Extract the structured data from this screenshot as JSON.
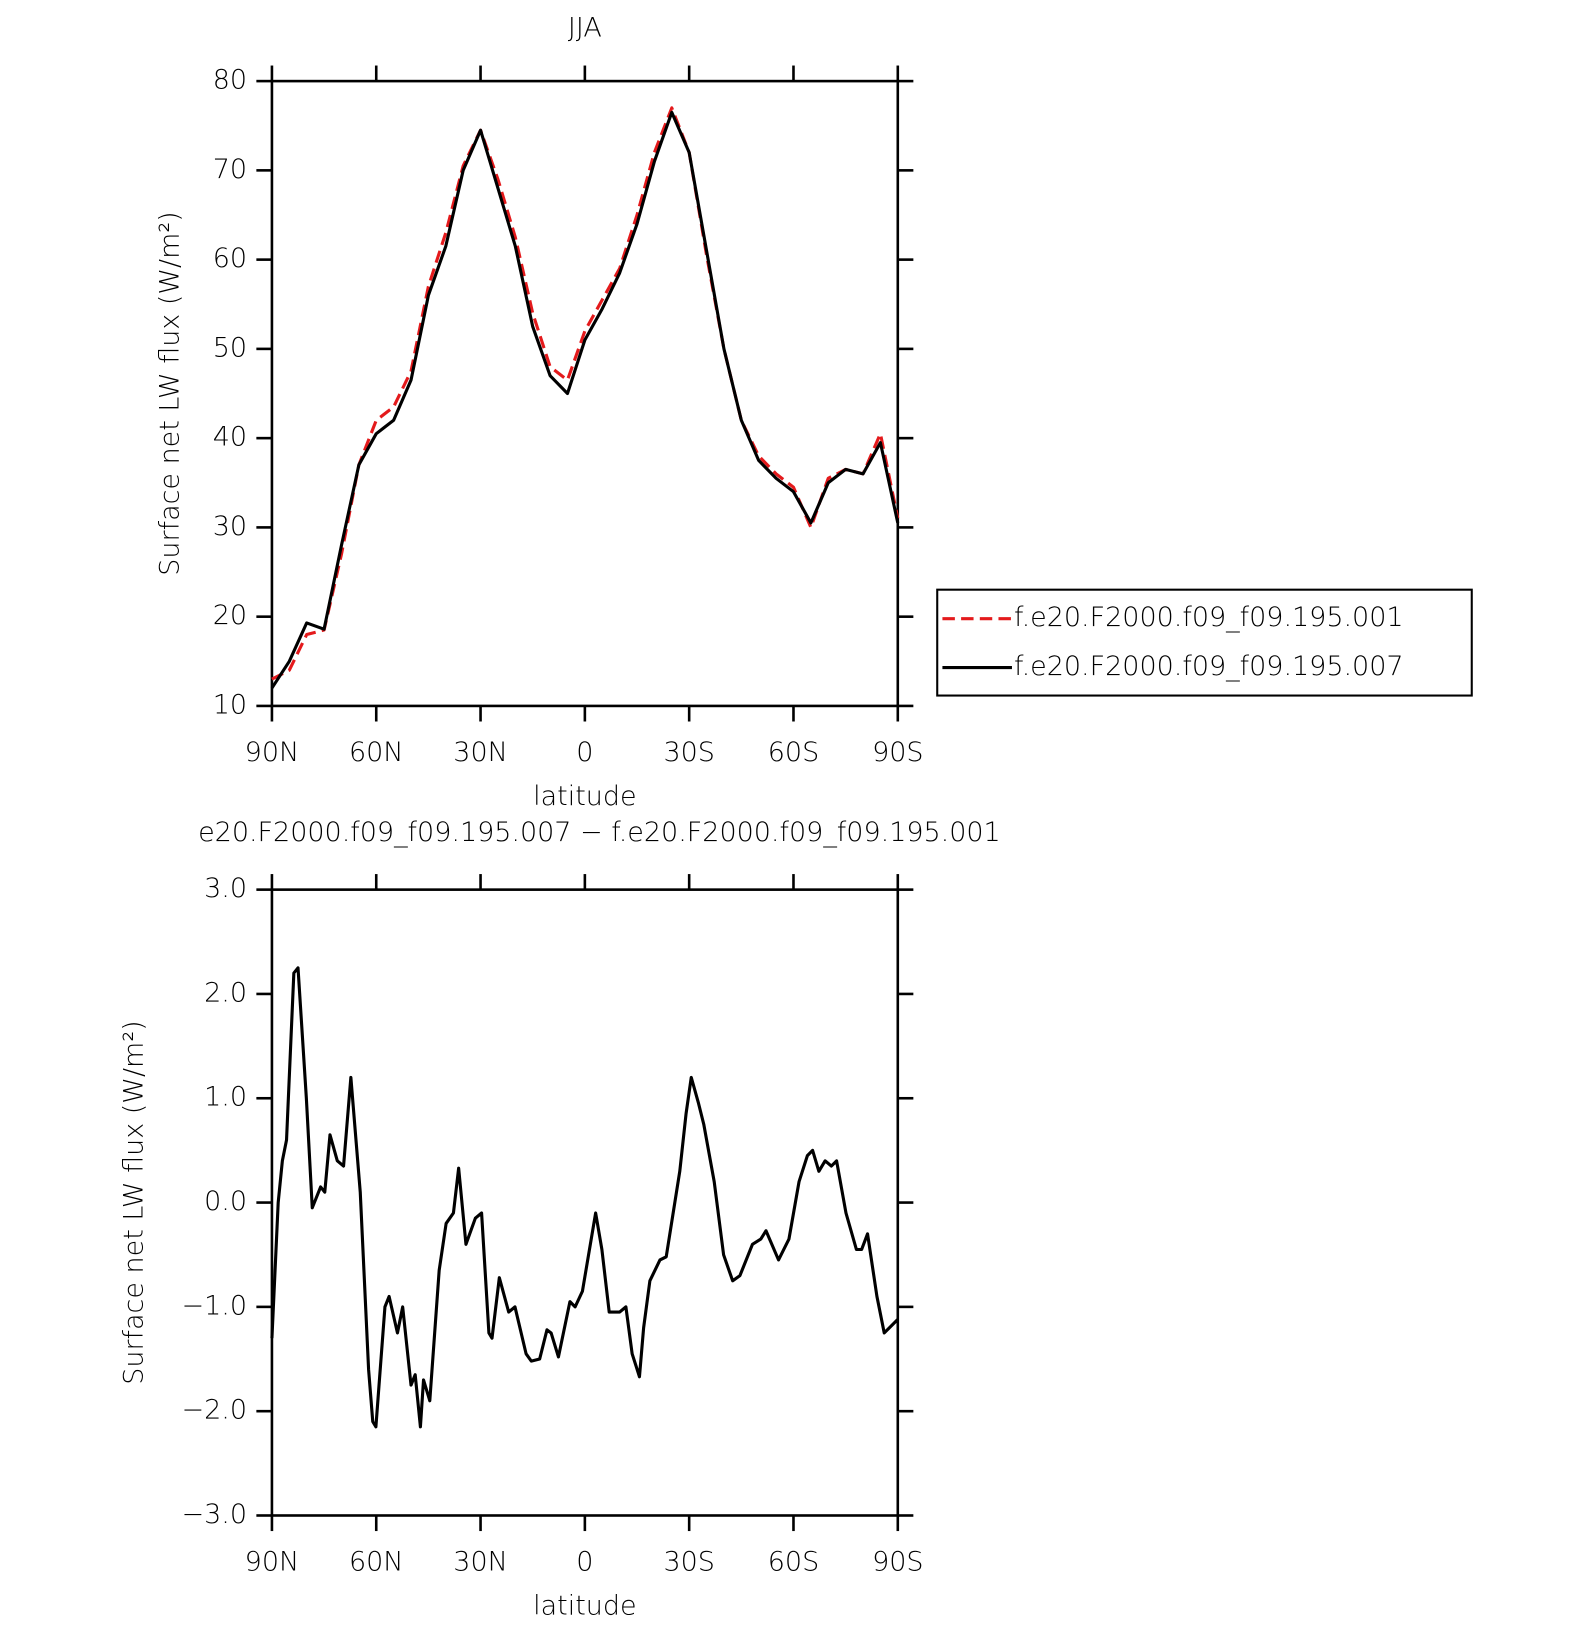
{
  "chart_data": [
    {
      "type": "line",
      "title": "JJA",
      "x_label": "latitude",
      "y_label": "Surface net LW flux (W/m²)",
      "x": [
        90,
        85,
        80,
        75,
        70,
        65,
        60,
        55,
        50,
        45,
        40,
        35,
        30,
        25,
        20,
        15,
        10,
        5,
        0,
        -5,
        -10,
        -15,
        -20,
        -25,
        -30,
        -35,
        -40,
        -45,
        -50,
        -55,
        -60,
        -65,
        -70,
        -75,
        -80,
        -85,
        -90
      ],
      "series": [
        {
          "name": "f.e20.F2000.f09_f09.195.001",
          "color": "#e41a1c",
          "dashed": true,
          "values": [
            13,
            14,
            18,
            18.5,
            27,
            37,
            42,
            43.5,
            47.5,
            57,
            63,
            70.5,
            74.5,
            69,
            62.5,
            54,
            48,
            46.5,
            52,
            55.5,
            59,
            65,
            72,
            77,
            72,
            60.5,
            50,
            42,
            38,
            36,
            34.5,
            30,
            35.5,
            36.5,
            36,
            40.5,
            31
          ]
        },
        {
          "name": "f.e20.F2000.f09_f09.195.007",
          "color": "#000000",
          "dashed": false,
          "values": [
            12,
            15,
            19.3,
            18.6,
            28,
            37,
            40.5,
            42,
            46.5,
            56,
            61.5,
            70,
            74.5,
            68,
            61.5,
            52.5,
            47,
            45,
            51,
            54.5,
            58.5,
            64,
            71,
            76.5,
            72,
            61,
            50,
            42,
            37.5,
            35.5,
            34,
            30.5,
            35,
            36.5,
            36,
            39.5,
            30.5
          ]
        }
      ],
      "xlim": [
        90,
        -90
      ],
      "xticks": [
        {
          "value": 90,
          "label": "90N"
        },
        {
          "value": 60,
          "label": "60N"
        },
        {
          "value": 30,
          "label": "30N"
        },
        0,
        {
          "value": -30,
          "label": "30S"
        },
        {
          "value": -60,
          "label": "60S"
        },
        {
          "value": -90,
          "label": "90S"
        }
      ],
      "ylim": [
        10,
        80
      ],
      "yticks": [
        10,
        20,
        30,
        40,
        50,
        60,
        70,
        80
      ],
      "legend": "right",
      "grid": false
    },
    {
      "type": "line",
      "title": "e20.F2000.f09_f09.195.007 − f.e20.F2000.f09_f09.195.001",
      "x_label": "latitude",
      "y_label": "Surface net LW flux (W/m²)",
      "x": [
        90,
        88.2,
        87,
        85.8,
        83.7,
        82.5,
        80.1,
        78.4,
        76,
        74.8,
        73.3,
        71.2,
        69.4,
        67.3,
        64.6,
        62.2,
        61,
        60.1,
        57.5,
        56.3,
        53.9,
        52.4,
        50,
        48.8,
        47.3,
        46.4,
        44.6,
        41.9,
        39.9,
        37.8,
        36.3,
        34.2,
        31.5,
        29.7,
        27.6,
        26.7,
        24.6,
        21.9,
        20.1,
        16.9,
        15.4,
        13,
        10.9,
        9.7,
        7.6,
        4.3,
        2.8,
        0.7,
        -3.1,
        -4.9,
        -7,
        -10,
        -11.8,
        -13.6,
        -15.7,
        -16.9,
        -18.7,
        -21.6,
        -23.4,
        -27.3,
        -29.1,
        -30.6,
        -32.7,
        -34.2,
        -37.2,
        -39.9,
        -42.5,
        -44.6,
        -48.2,
        -50.6,
        -52.1,
        -55.7,
        -58.7,
        -61.6,
        -64,
        -65.5,
        -67.3,
        -69.1,
        -70.9,
        -72.4,
        -75.1,
        -78.1,
        -79.6,
        -81.3,
        -84,
        -86.1,
        -90
      ],
      "series": [
        {
          "color": "#000000",
          "dashed": false,
          "values": [
            -1.3,
            0,
            0.4,
            0.6,
            2.2,
            2.25,
            1.0,
            -0.05,
            0.15,
            0.1,
            0.65,
            0.4,
            0.35,
            1.2,
            0.1,
            -1.6,
            -2.1,
            -2.15,
            -1.0,
            -0.9,
            -1.25,
            -1.0,
            -1.75,
            -1.65,
            -2.15,
            -1.7,
            -1.9,
            -0.65,
            -0.2,
            -0.1,
            0.33,
            -0.4,
            -0.15,
            -0.1,
            -1.25,
            -1.3,
            -0.72,
            -1.05,
            -1.0,
            -1.45,
            -1.52,
            -1.5,
            -1.22,
            -1.25,
            -1.48,
            -0.95,
            -1.0,
            -0.85,
            -0.1,
            -0.45,
            -1.05,
            -1.05,
            -1.0,
            -1.45,
            -1.67,
            -1.2,
            -0.75,
            -0.55,
            -0.52,
            0.3,
            0.85,
            1.2,
            0.95,
            0.75,
            0.2,
            -0.5,
            -0.75,
            -0.7,
            -0.4,
            -0.35,
            -0.27,
            -0.55,
            -0.35,
            0.2,
            0.45,
            0.5,
            0.3,
            0.4,
            0.35,
            0.4,
            -0.1,
            -0.45,
            -0.45,
            -0.3,
            -0.9,
            -1.25,
            -1.12
          ]
        }
      ],
      "xlim": [
        90,
        -90
      ],
      "xticks": [
        {
          "value": 90,
          "label": "90N"
        },
        {
          "value": 60,
          "label": "60N"
        },
        {
          "value": 30,
          "label": "30N"
        },
        0,
        {
          "value": -30,
          "label": "30S"
        },
        {
          "value": -60,
          "label": "60S"
        },
        {
          "value": -90,
          "label": "90S"
        }
      ],
      "ylim": [
        -3,
        3
      ],
      "yticks": [
        {
          "value": -3,
          "label": "−3.0"
        },
        {
          "value": -2,
          "label": "−2.0"
        },
        {
          "value": -1,
          "label": "−1.0"
        },
        {
          "value": 0,
          "label": "0.0"
        },
        {
          "value": 1,
          "label": "1.0"
        },
        {
          "value": 2,
          "label": "2.0"
        },
        {
          "value": 3,
          "label": "3.0"
        }
      ],
      "grid": false
    }
  ]
}
